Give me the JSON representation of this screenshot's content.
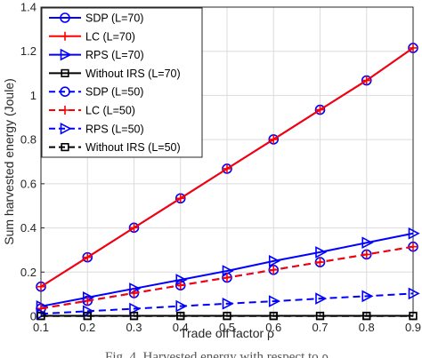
{
  "chart_data": {
    "type": "line",
    "title": "",
    "xlabel": "Trade off factor ρ",
    "ylabel": "Sum harvested energy (Joule)",
    "xlim": [
      0.1,
      0.9
    ],
    "ylim": [
      0,
      1.4
    ],
    "xticks": [
      "0.1",
      "0.2",
      "0.3",
      "0.4",
      "0.5",
      "0.6",
      "0.7",
      "0.8",
      "0.9"
    ],
    "yticks": [
      "0",
      "0.2",
      "0.4",
      "0.6",
      "0.8",
      "1",
      "1.2",
      "1.4"
    ],
    "grid": true,
    "legend_position": "top-left",
    "x": [
      0.1,
      0.2,
      0.3,
      0.4,
      0.5,
      0.6,
      0.7,
      0.8,
      0.9
    ],
    "series": [
      {
        "name": "SDP (L=70)",
        "color": "#0000ff",
        "dash": "solid",
        "marker": "circle",
        "values": [
          0.134,
          0.267,
          0.401,
          0.534,
          0.668,
          0.801,
          0.935,
          1.068,
          1.215
        ]
      },
      {
        "name": "LC (L=70)",
        "color": "#ff0000",
        "dash": "solid",
        "marker": "plus",
        "values": [
          0.134,
          0.267,
          0.401,
          0.534,
          0.668,
          0.801,
          0.935,
          1.068,
          1.215
        ]
      },
      {
        "name": "RPS (L=70)",
        "color": "#0000ff",
        "dash": "solid",
        "marker": "triangle-right",
        "values": [
          0.045,
          0.085,
          0.125,
          0.165,
          0.205,
          0.25,
          0.29,
          0.333,
          0.375
        ]
      },
      {
        "name": "Without IRS (L=70)",
        "color": "#000000",
        "dash": "solid",
        "marker": "square",
        "values": [
          0.002,
          0.002,
          0.002,
          0.002,
          0.002,
          0.002,
          0.002,
          0.002,
          0.002
        ]
      },
      {
        "name": "SDP (L=50)",
        "color": "#0000ff",
        "dash": "dashed",
        "marker": "circle",
        "values": [
          0.035,
          0.07,
          0.105,
          0.14,
          0.175,
          0.21,
          0.245,
          0.28,
          0.315
        ]
      },
      {
        "name": "LC (L=50)",
        "color": "#ff0000",
        "dash": "dashed",
        "marker": "plus",
        "values": [
          0.035,
          0.07,
          0.105,
          0.14,
          0.175,
          0.21,
          0.245,
          0.28,
          0.315
        ]
      },
      {
        "name": "RPS (L=50)",
        "color": "#0000ff",
        "dash": "dashed",
        "marker": "triangle-right",
        "values": [
          0.011,
          0.023,
          0.034,
          0.046,
          0.057,
          0.068,
          0.08,
          0.091,
          0.103
        ]
      },
      {
        "name": "Without IRS (L=50)",
        "color": "#000000",
        "dash": "dashed",
        "marker": "square",
        "values": [
          0.001,
          0.001,
          0.001,
          0.001,
          0.001,
          0.001,
          0.001,
          0.001,
          0.001
        ]
      }
    ]
  },
  "caption": "Fig. 4. Harvested energy with respect to ρ"
}
